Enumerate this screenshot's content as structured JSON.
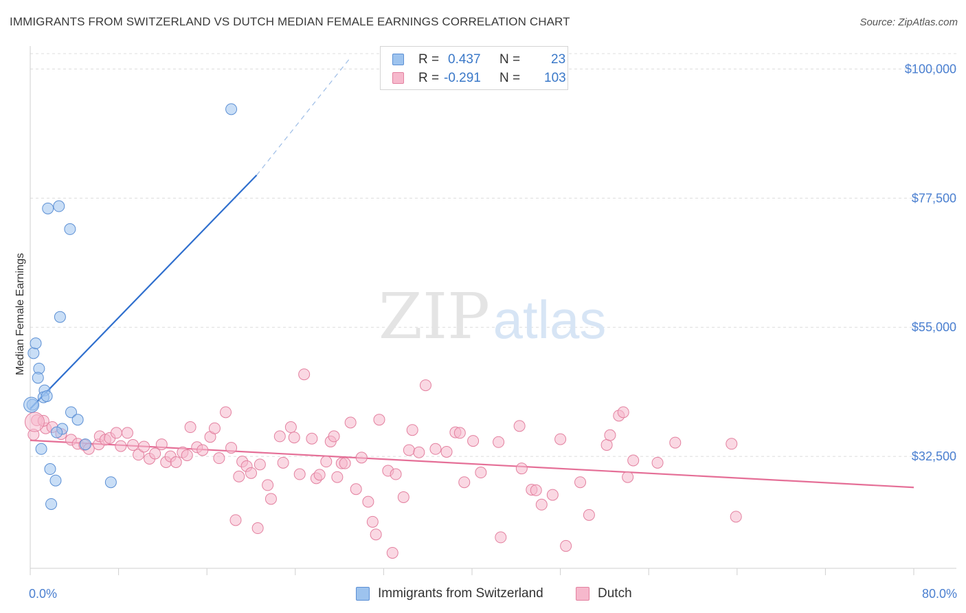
{
  "title": "IMMIGRANTS FROM SWITZERLAND VS DUTCH MEDIAN FEMALE EARNINGS CORRELATION CHART",
  "source": "Source: ZipAtlas.com",
  "watermark": {
    "zip": "ZIP",
    "atlas": "atlas"
  },
  "legend": {
    "r_label": "R =",
    "n_label": "N =",
    "rows": [
      {
        "r": "0.437",
        "n": "23",
        "color": "#9dc3ee",
        "border": "#5b8fd4"
      },
      {
        "r": "-0.291",
        "n": "103",
        "color": "#f6b8cc",
        "border": "#e3809f"
      }
    ]
  },
  "chart_data": {
    "type": "scatter",
    "title": "",
    "xlabel": "",
    "ylabel": "Median Female Earnings",
    "xlim": [
      0,
      80
    ],
    "ylim": [
      13000,
      104000
    ],
    "x_tick_labels": [
      "0.0%",
      "80.0%"
    ],
    "y_ticks": [
      {
        "value": 32500,
        "label": "$32,500"
      },
      {
        "value": 55000,
        "label": "$55,000"
      },
      {
        "value": 77500,
        "label": "$77,500"
      },
      {
        "value": 100000,
        "label": "$100,000"
      }
    ],
    "grid": "horizontal dashed",
    "legend_position": "top-center",
    "series": [
      {
        "name": "Immigrants from Switzerland",
        "color": "#9dc3ee",
        "edge": "#5b8fd4",
        "trend_color": "#2f6fce",
        "trend": {
          "x0": 0,
          "y0": 40800,
          "x1": 20.5,
          "y1": 81500,
          "dash_x1": 29,
          "dash_y1": 102000
        },
        "points": [
          {
            "x": 0.2,
            "y": 41500
          },
          {
            "x": 0.3,
            "y": 50500
          },
          {
            "x": 0.5,
            "y": 52200
          },
          {
            "x": 0.8,
            "y": 47800
          },
          {
            "x": 0.7,
            "y": 46200
          },
          {
            "x": 1.3,
            "y": 44000
          },
          {
            "x": 1.2,
            "y": 42800
          },
          {
            "x": 1.5,
            "y": 43000
          },
          {
            "x": 1.6,
            "y": 75700
          },
          {
            "x": 2.6,
            "y": 76100
          },
          {
            "x": 3.6,
            "y": 72100
          },
          {
            "x": 2.7,
            "y": 56800
          },
          {
            "x": 2.9,
            "y": 37300
          },
          {
            "x": 2.4,
            "y": 36700
          },
          {
            "x": 3.7,
            "y": 40200
          },
          {
            "x": 4.3,
            "y": 38900
          },
          {
            "x": 5.0,
            "y": 34600
          },
          {
            "x": 1.0,
            "y": 33800
          },
          {
            "x": 1.8,
            "y": 30300
          },
          {
            "x": 2.3,
            "y": 28300
          },
          {
            "x": 1.9,
            "y": 24200
          },
          {
            "x": 7.3,
            "y": 28000
          },
          {
            "x": 18.2,
            "y": 93000
          }
        ]
      },
      {
        "name": "Dutch",
        "color": "#f6b8cc",
        "edge": "#e3809f",
        "trend_color": "#e56f97",
        "trend": {
          "x0": 0,
          "y0": 35300,
          "x1": 80,
          "y1": 27100
        },
        "points": [
          {
            "x": 0.3,
            "y": 36300
          },
          {
            "x": 0.6,
            "y": 38800
          },
          {
            "x": 1.4,
            "y": 37400
          },
          {
            "x": 1.2,
            "y": 38700
          },
          {
            "x": 2.0,
            "y": 37600
          },
          {
            "x": 2.8,
            "y": 36400
          },
          {
            "x": 3.7,
            "y": 35400
          },
          {
            "x": 4.3,
            "y": 34700
          },
          {
            "x": 4.9,
            "y": 34500
          },
          {
            "x": 5.3,
            "y": 33800
          },
          {
            "x": 6.2,
            "y": 34600
          },
          {
            "x": 6.3,
            "y": 36000
          },
          {
            "x": 6.8,
            "y": 35400
          },
          {
            "x": 7.2,
            "y": 35700
          },
          {
            "x": 7.8,
            "y": 36600
          },
          {
            "x": 8.2,
            "y": 34300
          },
          {
            "x": 8.8,
            "y": 36600
          },
          {
            "x": 9.3,
            "y": 34500
          },
          {
            "x": 9.8,
            "y": 32800
          },
          {
            "x": 10.3,
            "y": 34200
          },
          {
            "x": 10.8,
            "y": 32100
          },
          {
            "x": 11.3,
            "y": 33000
          },
          {
            "x": 11.9,
            "y": 34600
          },
          {
            "x": 12.3,
            "y": 31500
          },
          {
            "x": 12.7,
            "y": 32500
          },
          {
            "x": 13.2,
            "y": 31500
          },
          {
            "x": 13.8,
            "y": 33200
          },
          {
            "x": 14.2,
            "y": 32700
          },
          {
            "x": 14.5,
            "y": 37600
          },
          {
            "x": 15.1,
            "y": 34100
          },
          {
            "x": 15.6,
            "y": 33600
          },
          {
            "x": 16.3,
            "y": 35900
          },
          {
            "x": 16.7,
            "y": 37400
          },
          {
            "x": 17.1,
            "y": 32200
          },
          {
            "x": 17.7,
            "y": 40200
          },
          {
            "x": 18.2,
            "y": 34000
          },
          {
            "x": 18.6,
            "y": 21400
          },
          {
            "x": 18.9,
            "y": 29000
          },
          {
            "x": 19.2,
            "y": 31600
          },
          {
            "x": 19.6,
            "y": 30800
          },
          {
            "x": 20.0,
            "y": 29600
          },
          {
            "x": 20.6,
            "y": 20000
          },
          {
            "x": 20.8,
            "y": 31100
          },
          {
            "x": 21.5,
            "y": 27500
          },
          {
            "x": 21.8,
            "y": 25100
          },
          {
            "x": 22.6,
            "y": 36000
          },
          {
            "x": 22.9,
            "y": 31400
          },
          {
            "x": 23.6,
            "y": 37600
          },
          {
            "x": 23.9,
            "y": 35800
          },
          {
            "x": 24.4,
            "y": 29400
          },
          {
            "x": 24.8,
            "y": 46800
          },
          {
            "x": 25.5,
            "y": 35600
          },
          {
            "x": 25.9,
            "y": 28700
          },
          {
            "x": 26.2,
            "y": 29300
          },
          {
            "x": 26.8,
            "y": 31600
          },
          {
            "x": 27.2,
            "y": 35100
          },
          {
            "x": 27.5,
            "y": 36000
          },
          {
            "x": 27.8,
            "y": 28900
          },
          {
            "x": 28.2,
            "y": 31300
          },
          {
            "x": 28.5,
            "y": 31300
          },
          {
            "x": 29.0,
            "y": 38400
          },
          {
            "x": 29.5,
            "y": 26800
          },
          {
            "x": 30.0,
            "y": 32300
          },
          {
            "x": 30.6,
            "y": 24600
          },
          {
            "x": 31.0,
            "y": 21100
          },
          {
            "x": 31.3,
            "y": 18900
          },
          {
            "x": 31.6,
            "y": 38900
          },
          {
            "x": 32.4,
            "y": 30000
          },
          {
            "x": 32.8,
            "y": 15700
          },
          {
            "x": 33.1,
            "y": 29400
          },
          {
            "x": 33.8,
            "y": 25400
          },
          {
            "x": 34.3,
            "y": 33600
          },
          {
            "x": 34.6,
            "y": 37100
          },
          {
            "x": 35.2,
            "y": 33200
          },
          {
            "x": 35.8,
            "y": 44900
          },
          {
            "x": 36.7,
            "y": 33800
          },
          {
            "x": 37.7,
            "y": 33300
          },
          {
            "x": 38.5,
            "y": 36700
          },
          {
            "x": 38.9,
            "y": 36600
          },
          {
            "x": 39.3,
            "y": 28000
          },
          {
            "x": 40.1,
            "y": 35200
          },
          {
            "x": 40.8,
            "y": 29700
          },
          {
            "x": 42.4,
            "y": 35000
          },
          {
            "x": 42.6,
            "y": 18400
          },
          {
            "x": 44.3,
            "y": 37800
          },
          {
            "x": 44.5,
            "y": 30400
          },
          {
            "x": 45.4,
            "y": 26700
          },
          {
            "x": 45.8,
            "y": 26600
          },
          {
            "x": 46.3,
            "y": 24100
          },
          {
            "x": 47.3,
            "y": 25800
          },
          {
            "x": 48.0,
            "y": 35500
          },
          {
            "x": 48.5,
            "y": 16900
          },
          {
            "x": 49.8,
            "y": 28000
          },
          {
            "x": 50.6,
            "y": 22300
          },
          {
            "x": 52.2,
            "y": 34500
          },
          {
            "x": 52.5,
            "y": 36200
          },
          {
            "x": 53.3,
            "y": 39600
          },
          {
            "x": 53.7,
            "y": 40200
          },
          {
            "x": 54.1,
            "y": 28900
          },
          {
            "x": 54.6,
            "y": 31800
          },
          {
            "x": 56.8,
            "y": 31400
          },
          {
            "x": 58.4,
            "y": 34900
          },
          {
            "x": 63.5,
            "y": 34700
          },
          {
            "x": 63.9,
            "y": 22000
          }
        ]
      }
    ]
  },
  "bottom_legend": [
    "Immigrants from Switzerland",
    "Dutch"
  ]
}
